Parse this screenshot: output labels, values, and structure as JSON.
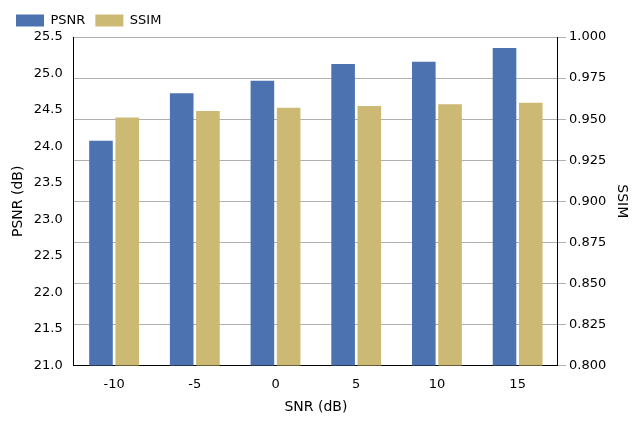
{
  "chart_data": {
    "type": "bar",
    "x_label": "SNR (dB)",
    "y_label": "PSNR (dB)",
    "y2_label": "SSIM",
    "categories": [
      "-10",
      "-5",
      "0",
      "5",
      "10",
      "15"
    ],
    "series": [
      {
        "name": "PSNR",
        "color": "#4c72b0",
        "values": [
          24.08,
          24.73,
          24.9,
          25.13,
          25.16,
          25.35
        ]
      },
      {
        "name": "SSIM",
        "color": "#ccb974",
        "axis": "y2",
        "values": [
          0.951,
          0.955,
          0.957,
          0.958,
          0.959,
          0.96
        ]
      }
    ],
    "ylim": [
      21,
      25.5
    ],
    "yticks": [
      {
        "value": 21,
        "label": "21.0"
      },
      21.5,
      {
        "value": 22,
        "label": "22.0"
      },
      22.5,
      {
        "value": 23,
        "label": "23.0"
      },
      23.5,
      {
        "value": 24,
        "label": "24.0"
      },
      24.5,
      {
        "value": 25,
        "label": "25.0"
      },
      25.5
    ],
    "y2lim": [
      0.8,
      1.0
    ],
    "y2ticks": [
      {
        "value": 0.8,
        "label": "0.800"
      },
      0.825,
      {
        "value": 0.85,
        "label": "0.850"
      },
      0.875,
      {
        "value": 0.9,
        "label": "0.900"
      },
      0.925,
      {
        "value": 0.95,
        "label": "0.950"
      },
      0.975,
      {
        "value": 1.0,
        "label": "1.000"
      }
    ],
    "grid": true,
    "legend": "upper left"
  }
}
